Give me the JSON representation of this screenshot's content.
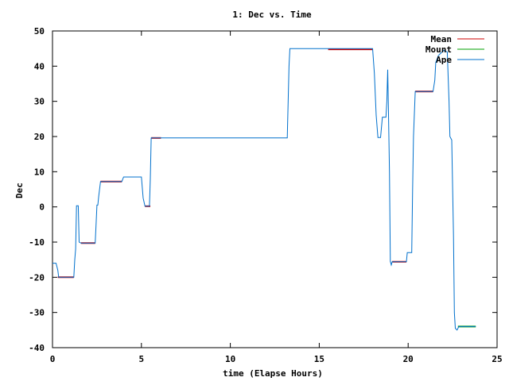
{
  "chart_data": {
    "type": "line",
    "title": "1: Dec vs. Time",
    "xlabel": "time (Elapse Hours)",
    "ylabel": "Dec",
    "xlim": [
      0,
      25
    ],
    "ylim": [
      -40,
      50
    ],
    "xticks": [
      0,
      5,
      10,
      15,
      20,
      25
    ],
    "yticks": [
      -40,
      -30,
      -20,
      -10,
      0,
      10,
      20,
      30,
      40,
      50
    ],
    "legend_position": "top-right",
    "grid": false,
    "series": [
      {
        "name": "Mean",
        "color": "#cc0000",
        "segments": [
          [
            [
              0.3,
              -20
            ],
            [
              1.2,
              -20
            ]
          ],
          [
            [
              1.6,
              -10.3
            ],
            [
              2.4,
              -10.3
            ]
          ],
          [
            [
              2.7,
              7.2
            ],
            [
              3.9,
              7.2
            ]
          ],
          [
            [
              5.2,
              0.2
            ],
            [
              5.5,
              0.2
            ]
          ],
          [
            [
              5.55,
              19.6
            ],
            [
              6.1,
              19.6
            ]
          ],
          [
            [
              15.5,
              44.8
            ],
            [
              18.0,
              44.8
            ]
          ],
          [
            [
              19.1,
              -15.6
            ],
            [
              19.9,
              -15.6
            ]
          ],
          [
            [
              20.4,
              32.8
            ],
            [
              21.4,
              32.8
            ]
          ]
        ]
      },
      {
        "name": "Mount",
        "color": "#00a000",
        "segments": [
          [
            [
              22.8,
              -34
            ],
            [
              23.8,
              -34
            ]
          ]
        ]
      },
      {
        "name": "Ape",
        "color": "#0070cc",
        "points": [
          [
            0,
            -16
          ],
          [
            0.2,
            -16
          ],
          [
            0.3,
            -18
          ],
          [
            0.35,
            -20
          ],
          [
            1.2,
            -20
          ],
          [
            1.25,
            -15
          ],
          [
            1.3,
            -12
          ],
          [
            1.35,
            0.3
          ],
          [
            1.45,
            0.3
          ],
          [
            1.5,
            -10
          ],
          [
            1.6,
            -10.3
          ],
          [
            2.4,
            -10.3
          ],
          [
            2.45,
            -5
          ],
          [
            2.5,
            0.5
          ],
          [
            2.55,
            0.5
          ],
          [
            2.6,
            3
          ],
          [
            2.7,
            7.2
          ],
          [
            3.9,
            7.2
          ],
          [
            4.0,
            8.5
          ],
          [
            5.0,
            8.5
          ],
          [
            5.1,
            2.5
          ],
          [
            5.2,
            0.2
          ],
          [
            5.45,
            0.2
          ],
          [
            5.5,
            8
          ],
          [
            5.55,
            19.6
          ],
          [
            13.2,
            19.6
          ],
          [
            13.3,
            40
          ],
          [
            13.35,
            45
          ],
          [
            18.0,
            45
          ],
          [
            18.1,
            38
          ],
          [
            18.2,
            26
          ],
          [
            18.3,
            19.7
          ],
          [
            18.45,
            19.7
          ],
          [
            18.55,
            25.5
          ],
          [
            18.75,
            25.5
          ],
          [
            18.8,
            30
          ],
          [
            18.85,
            39
          ],
          [
            18.9,
            25
          ],
          [
            18.95,
            10
          ],
          [
            19.0,
            -15.5
          ],
          [
            19.05,
            -16.5
          ],
          [
            19.1,
            -15.6
          ],
          [
            19.9,
            -15.6
          ],
          [
            19.95,
            -13
          ],
          [
            20.2,
            -13
          ],
          [
            20.25,
            5
          ],
          [
            20.3,
            20
          ],
          [
            20.4,
            32.8
          ],
          [
            21.4,
            32.8
          ],
          [
            21.5,
            36
          ],
          [
            21.55,
            41
          ],
          [
            21.7,
            43
          ],
          [
            22.0,
            44.5
          ],
          [
            22.2,
            44
          ],
          [
            22.3,
            30
          ],
          [
            22.35,
            20
          ],
          [
            22.45,
            19
          ],
          [
            22.55,
            -8
          ],
          [
            22.6,
            -30
          ],
          [
            22.65,
            -34.5
          ],
          [
            22.75,
            -35
          ],
          [
            22.85,
            -34
          ],
          [
            23.8,
            -34
          ]
        ]
      }
    ]
  }
}
